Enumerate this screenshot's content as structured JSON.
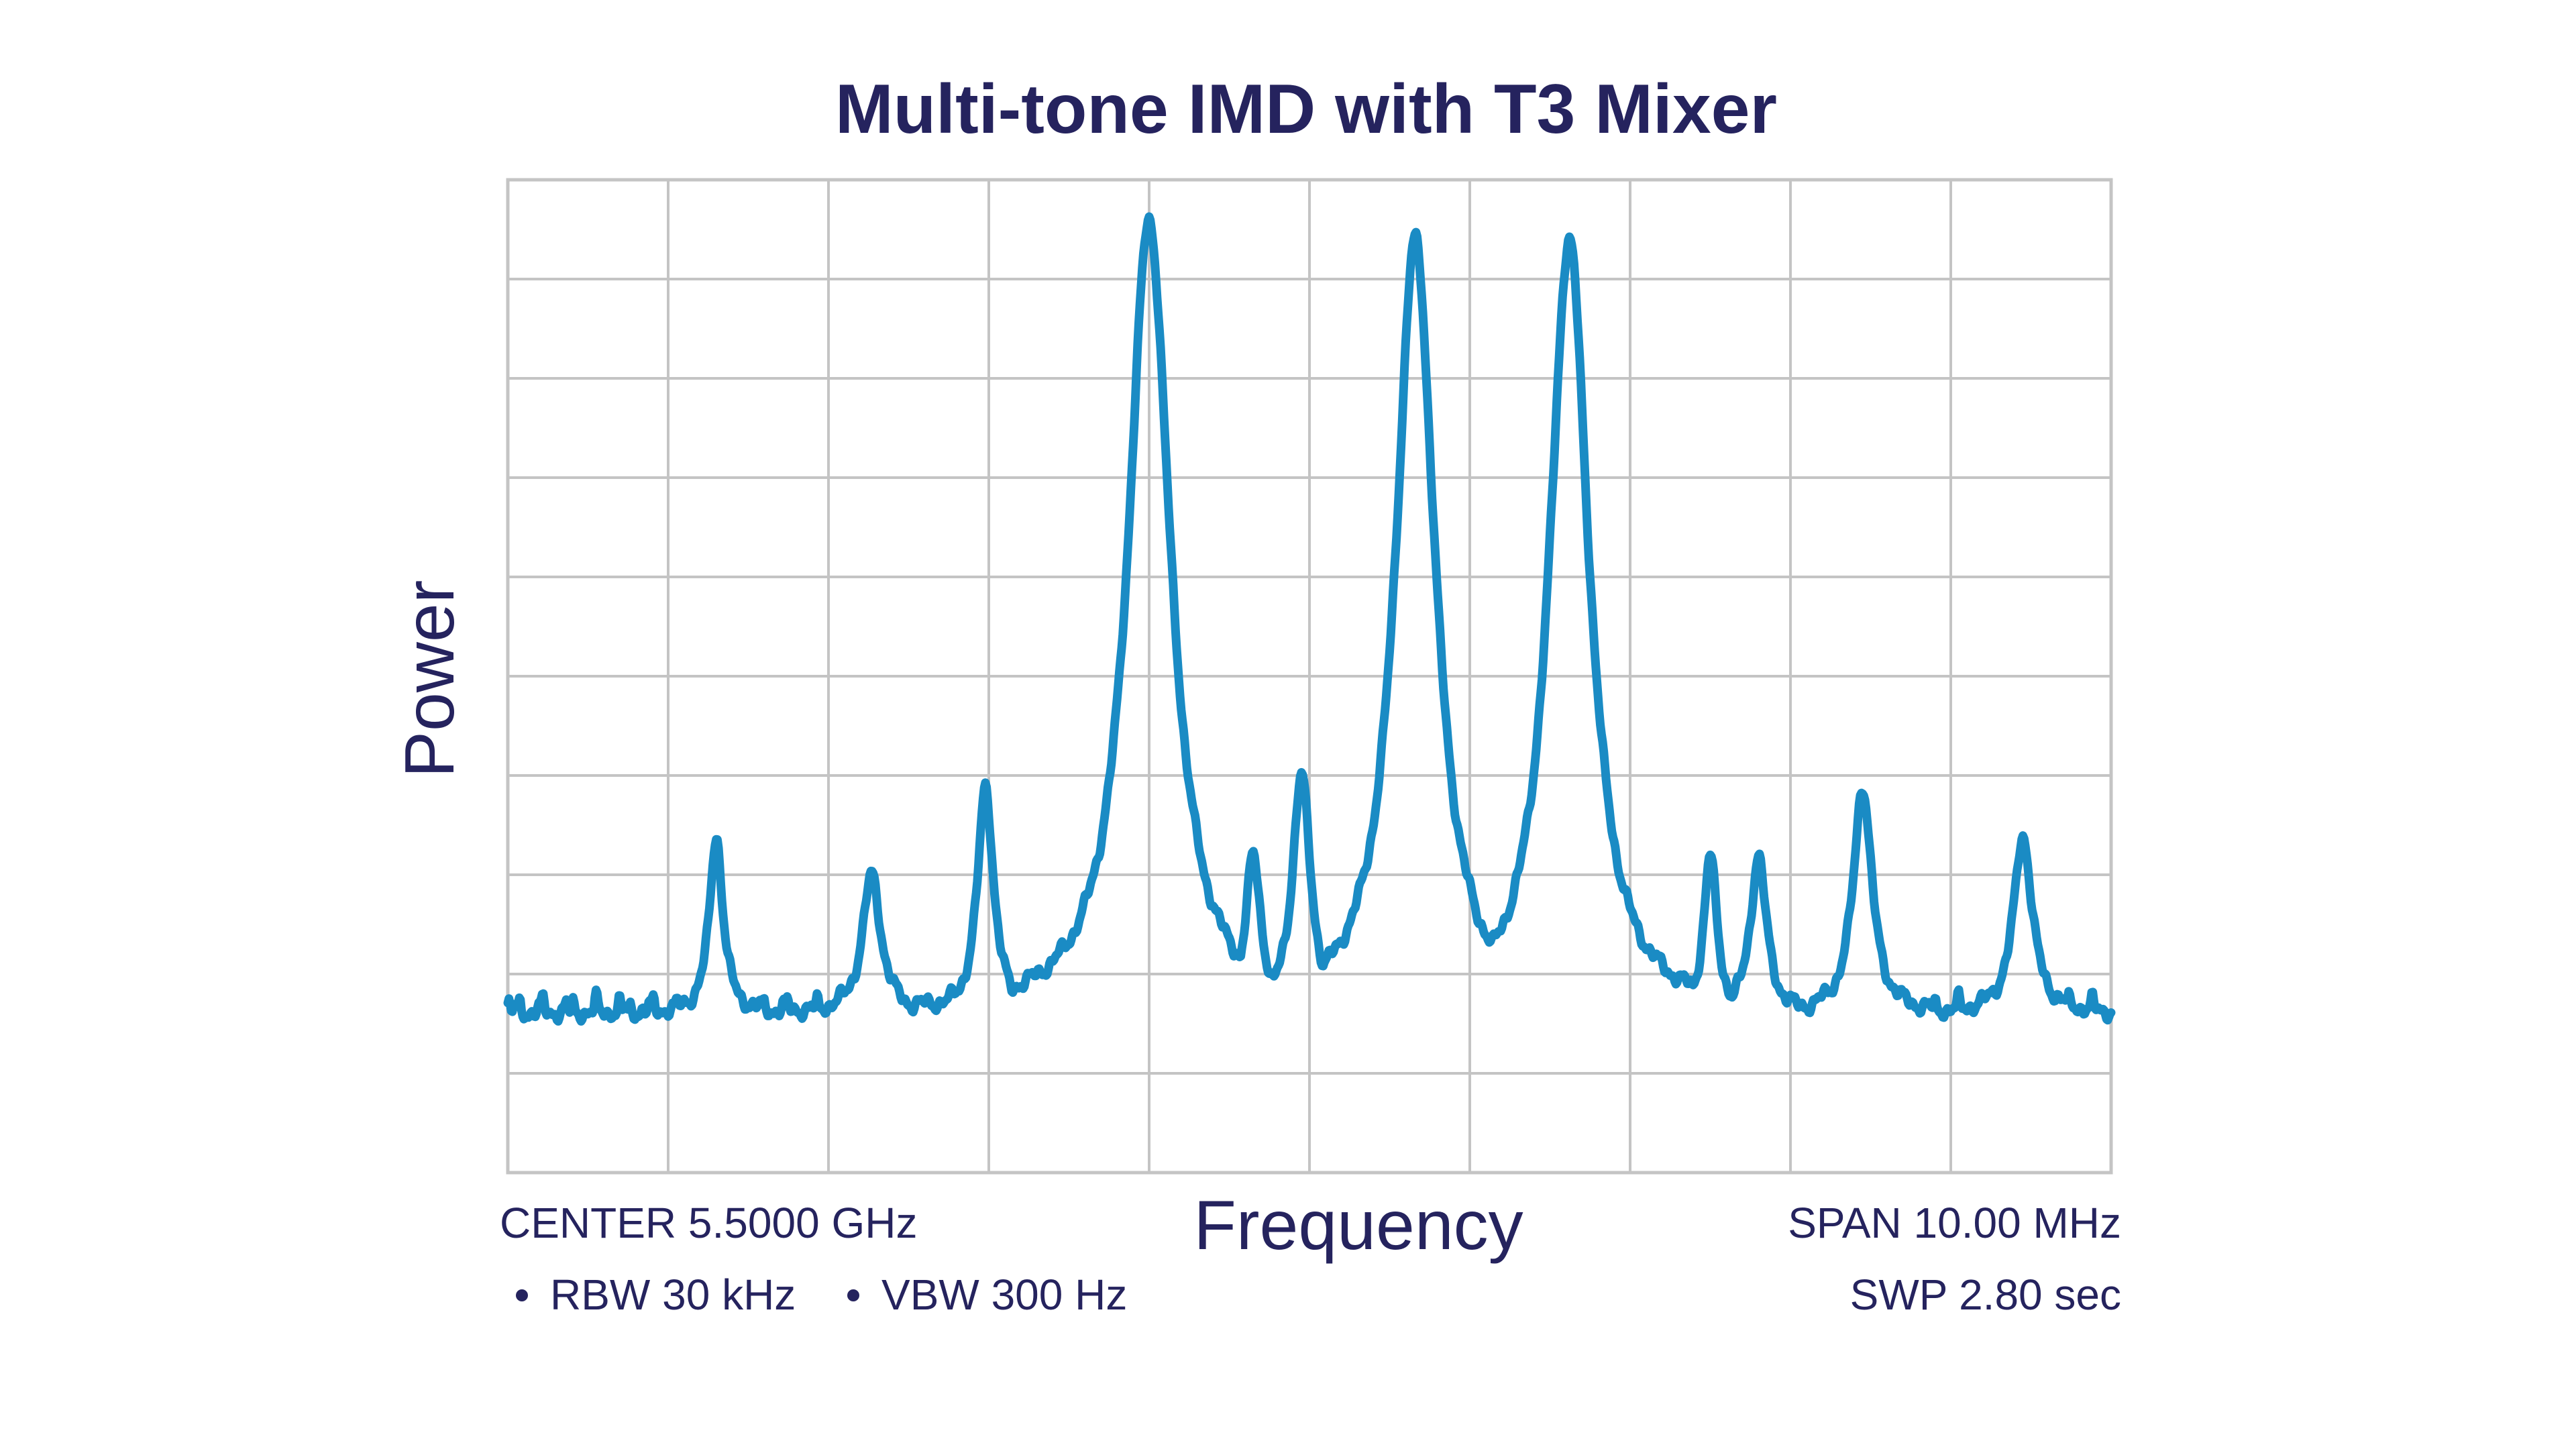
{
  "chart_data": {
    "type": "line",
    "title": "Multi-tone IMD with T3 Mixer",
    "xlabel": "Frequency",
    "ylabel": "Power",
    "grid": true,
    "x_divisions": 10,
    "y_divisions": 10,
    "xlim": [
      0,
      10
    ],
    "ylim": [
      0,
      10
    ],
    "center_label": "CENTER 5.5000 GHz",
    "span_label": "SPAN 10.00 MHz",
    "rbw_label": "RBW 30 kHz",
    "vbw_label": "VBW 300 Hz",
    "sweep_label": "SWP 2.80 sec",
    "colors": {
      "trace": "#1a8bc4",
      "grid": "#c4c4c4",
      "text": "#25235e"
    },
    "series": [
      {
        "floor": 1.6,
        "peaks": [
          {
            "x": 4.0,
            "y": 9.6,
            "w": 0.16
          },
          {
            "x": 5.66,
            "y": 9.4,
            "w": 0.15
          },
          {
            "x": 6.62,
            "y": 9.4,
            "w": 0.15
          },
          {
            "x": 1.3,
            "y": 3.4,
            "w": 0.05
          },
          {
            "x": 2.27,
            "y": 3.0,
            "w": 0.07
          },
          {
            "x": 2.98,
            "y": 3.9,
            "w": 0.06
          },
          {
            "x": 4.95,
            "y": 4.0,
            "w": 0.07
          },
          {
            "x": 4.65,
            "y": 3.2,
            "w": 0.06
          },
          {
            "x": 7.5,
            "y": 3.2,
            "w": 0.05
          },
          {
            "x": 7.8,
            "y": 3.2,
            "w": 0.06
          },
          {
            "x": 8.45,
            "y": 3.9,
            "w": 0.07
          },
          {
            "x": 9.45,
            "y": 3.4,
            "w": 0.07
          }
        ]
      }
    ]
  }
}
